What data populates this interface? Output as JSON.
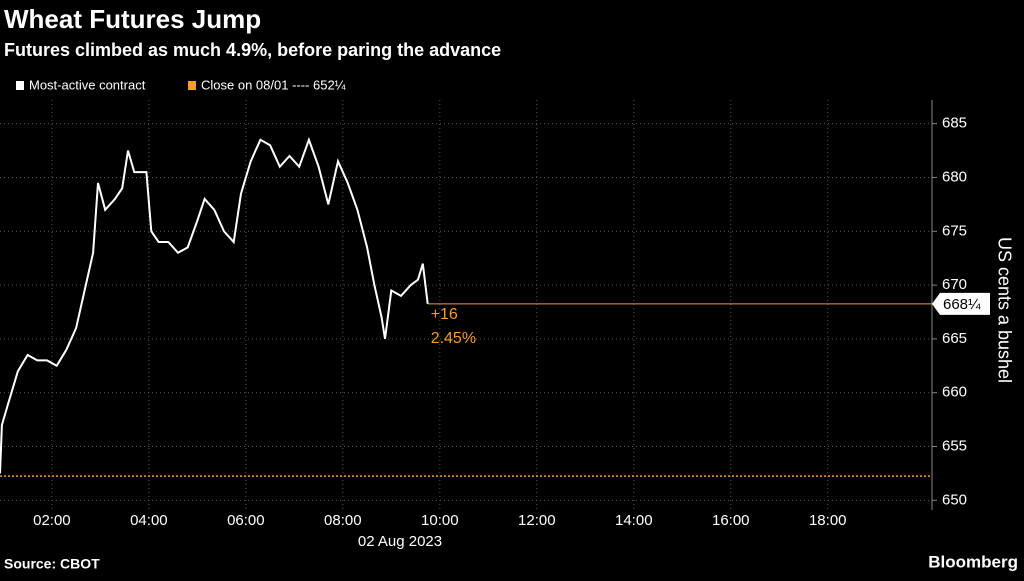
{
  "chart_data": {
    "type": "line",
    "title": "Wheat Futures Jump",
    "subtitle": "Futures climbed as much 4.9%, before paring the advance",
    "y_label": "US cents a bushel",
    "x_sublabel": "02 Aug 2023",
    "source": "Source: CBOT",
    "brand": "Bloomberg",
    "x": [
      0.93,
      0.97,
      1.1,
      1.3,
      1.5,
      1.7,
      1.9,
      2.1,
      2.3,
      2.5,
      2.7,
      2.85,
      2.95,
      3.1,
      3.3,
      3.45,
      3.57,
      3.7,
      3.95,
      4.05,
      4.2,
      4.4,
      4.6,
      4.8,
      5.0,
      5.15,
      5.35,
      5.55,
      5.75,
      5.9,
      6.1,
      6.3,
      6.5,
      6.7,
      6.9,
      7.1,
      7.3,
      7.5,
      7.7,
      7.9,
      8.1,
      8.3,
      8.5,
      8.65,
      8.8,
      8.87,
      9.0,
      9.2,
      9.4,
      9.55,
      9.65,
      9.75
    ],
    "series": [
      {
        "name": "Most-active contract",
        "color": "#ffffff",
        "values": [
          652.5,
          657,
          659,
          662,
          663.5,
          663,
          663,
          662.5,
          664,
          666,
          670,
          673,
          679.5,
          677,
          678,
          679,
          682.5,
          680.5,
          680.5,
          675,
          674,
          674,
          673,
          673.5,
          676,
          678,
          677,
          675,
          674,
          678.5,
          681.5,
          683.5,
          683,
          681,
          682,
          681,
          683.5,
          681,
          677.5,
          681.5,
          679.5,
          677,
          673.5,
          670,
          667,
          665,
          669.5,
          669,
          670,
          670.5,
          672,
          668.25
        ],
        "value_labels": [
          null,
          null,
          null,
          null,
          null,
          null,
          null,
          null,
          null,
          null,
          null,
          null,
          null,
          null,
          null,
          null,
          null,
          null,
          null,
          null,
          null,
          null,
          null,
          null,
          null,
          null,
          null,
          null,
          null,
          null,
          null,
          null,
          null,
          null,
          null,
          null,
          null,
          null,
          null,
          null,
          null,
          null,
          null,
          null,
          null,
          null,
          null,
          null,
          null,
          null,
          null,
          "668¼"
        ]
      }
    ],
    "reference_line": {
      "label": "Close on 08/01 ---- 652¼",
      "value": 652.25,
      "color": "#f39c32"
    },
    "annotations": [
      "+16",
      "2.45%"
    ],
    "xlim": [
      0.93,
      20.15
    ],
    "ylim": [
      649.1,
      687.2
    ],
    "xticks": [
      {
        "value": 2,
        "label": "02:00"
      },
      {
        "value": 4,
        "label": "04:00"
      },
      {
        "value": 6,
        "label": "06:00"
      },
      {
        "value": 8,
        "label": "08:00"
      },
      {
        "value": 10,
        "label": "10:00"
      },
      {
        "value": 12,
        "label": "12:00"
      },
      {
        "value": 14,
        "label": "14:00"
      },
      {
        "value": 16,
        "label": "16:00"
      },
      {
        "value": 18,
        "label": "18:00"
      }
    ],
    "yticks": [
      650,
      655,
      660,
      665,
      670,
      675,
      680,
      685
    ],
    "grid": true
  }
}
